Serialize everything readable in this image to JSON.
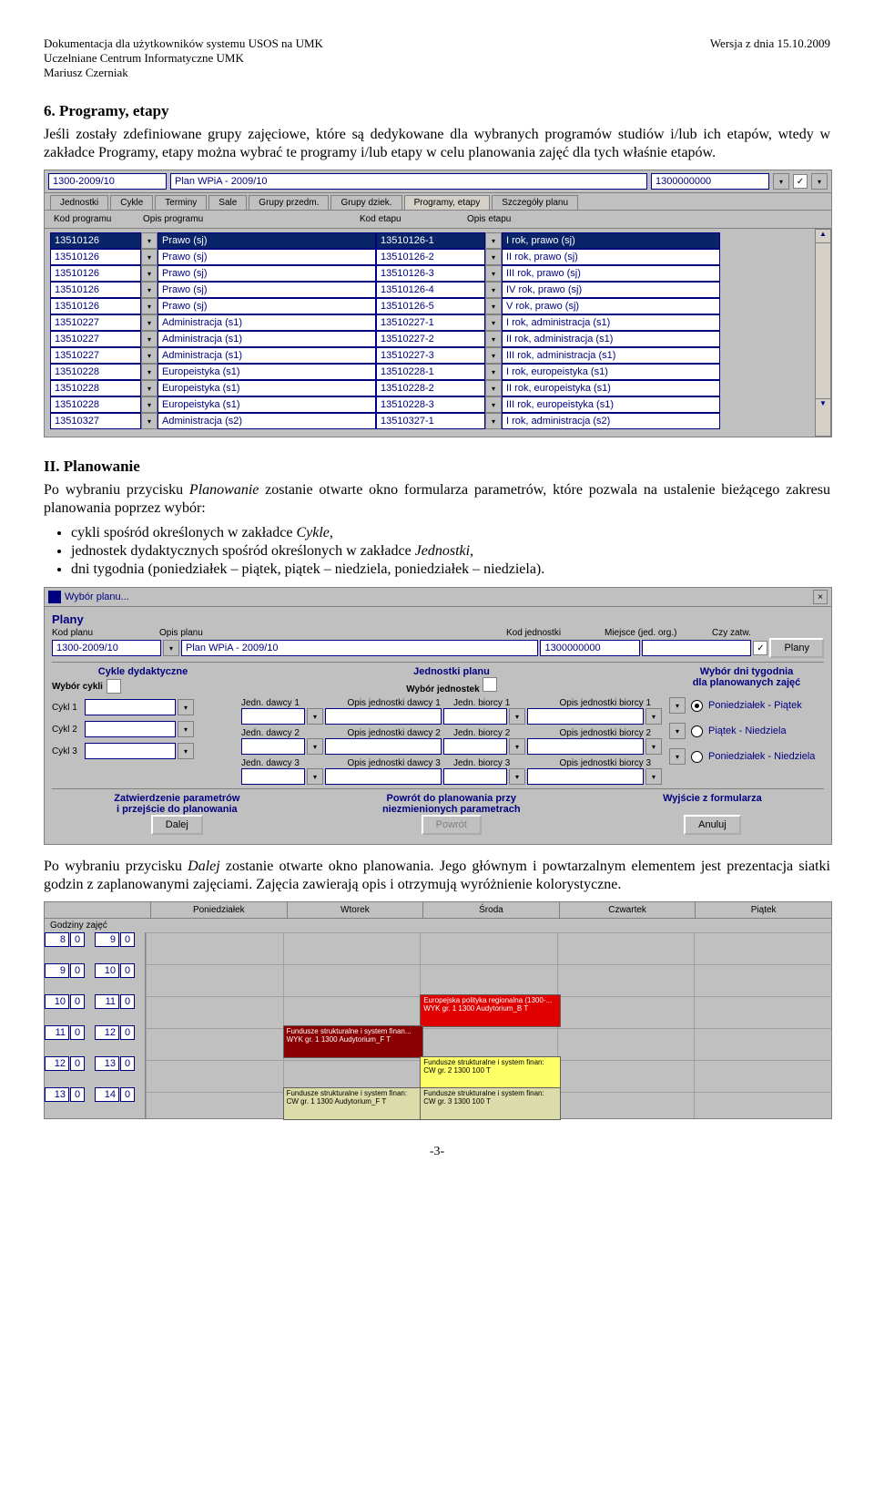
{
  "header": {
    "left1": "Dokumentacja dla użytkowników systemu USOS na UMK",
    "left2": "Uczelniane Centrum Informatyczne UMK",
    "left3": "Mariusz Czerniak",
    "right": "Wersja z dnia 15.10.2009"
  },
  "section6": {
    "title": "6. Programy, etapy",
    "para": "Jeśli zostały zdefiniowane grupy zajęciowe, które są dedykowane dla wybranych programów studiów i/lub ich etapów, wtedy w zakładce Programy, etapy można wybrać te programy i/lub etapy w celu planowania zajęć dla tych właśnie etapów."
  },
  "shot1": {
    "topbar": {
      "kod": "1300-2009/10",
      "plan": "Plan WPiA - 2009/10",
      "jedn": "1300000000"
    },
    "tabs": [
      "Jednostki",
      "Cykle",
      "Terminy",
      "Sale",
      "Grupy przedm.",
      "Grupy dziek.",
      "Programy, etapy",
      "Szczegóły planu"
    ],
    "activeTab": 6,
    "cols": [
      "Kod programu",
      "Opis programu",
      "Kod etapu",
      "Opis etapu"
    ],
    "colw": [
      "90px",
      "230px",
      "110px",
      "230px"
    ],
    "rows": [
      [
        "13510126",
        "Prawo (sj)",
        "13510126-1",
        "I rok, prawo (sj)"
      ],
      [
        "13510126",
        "Prawo (sj)",
        "13510126-2",
        "II rok, prawo (sj)"
      ],
      [
        "13510126",
        "Prawo (sj)",
        "13510126-3",
        "III rok, prawo (sj)"
      ],
      [
        "13510126",
        "Prawo (sj)",
        "13510126-4",
        "IV rok, prawo (sj)"
      ],
      [
        "13510126",
        "Prawo (sj)",
        "13510126-5",
        "V rok, prawo (sj)"
      ],
      [
        "13510227",
        "Administracja (s1)",
        "13510227-1",
        "I rok, administracja (s1)"
      ],
      [
        "13510227",
        "Administracja (s1)",
        "13510227-2",
        "II rok, administracja (s1)"
      ],
      [
        "13510227",
        "Administracja (s1)",
        "13510227-3",
        "III rok, administracja (s1)"
      ],
      [
        "13510228",
        "Europeistyka (s1)",
        "13510228-1",
        "I rok, europeistyka (s1)"
      ],
      [
        "13510228",
        "Europeistyka (s1)",
        "13510228-2",
        "II rok, europeistyka (s1)"
      ],
      [
        "13510228",
        "Europeistyka (s1)",
        "13510228-3",
        "III rok, europeistyka (s1)"
      ],
      [
        "13510327",
        "Administracja (s2)",
        "13510327-1",
        "I rok, administracja (s2)"
      ]
    ],
    "selected": 0
  },
  "sectionII": {
    "title": "II. Planowanie",
    "para": "Po wybraniu przycisku Planowanie zostanie otwarte okno formularza parametrów, które pozwala na ustalenie bieżącego zakresu planowania poprzez wybór:",
    "bullets": [
      "cykli spośród określonych w zakładce Cykle,",
      "jednostek dydaktycznych spośród określonych w zakładce Jednostki,",
      "dni tygodnia (poniedziałek – piątek, piątek – niedziela, poniedziałek – niedziela)."
    ]
  },
  "shot2": {
    "title": "Wybór planu...",
    "plany_label": "Plany",
    "hdrs": [
      "Kod planu",
      "Opis planu",
      "Kod jednostki",
      "Miejsce (jed. org.)",
      "Czy zatw."
    ],
    "row": {
      "kod": "1300-2009/10",
      "opis": "Plan WPiA - 2009/10",
      "jedn": "1300000000",
      "miejsce": "",
      "zatw": "✓",
      "btn": "Plany"
    },
    "cykle_label": "Cykle dydaktyczne",
    "wybor_cykli": "Wybór cykli",
    "cykle": [
      "Cykl 1",
      "Cykl 2",
      "Cykl 3"
    ],
    "jedn_label": "Jednostki planu",
    "wybor_jedn": "Wybór jednostek",
    "jedn_hdrs1": [
      "Jedn. dawcy 1",
      "Opis jednostki dawcy 1",
      "Jedn. biorcy 1",
      "Opis jednostki biorcy 1"
    ],
    "jedn_hdrs2": [
      "Jedn. dawcy 2",
      "Opis jednostki dawcy 2",
      "Jedn. biorcy 2",
      "Opis jednostki biorcy 2"
    ],
    "jedn_hdrs3": [
      "Jedn. dawcy 3",
      "Opis jednostki dawcy 3",
      "Jedn. biorcy 3",
      "Opis jednostki biorcy 3"
    ],
    "dni_label1": "Wybór dni tygodnia",
    "dni_label2": "dla planowanych zajęć",
    "dni": [
      "Poniedziałek - Piątek",
      "Piątek - Niedziela",
      "Poniedziałek - Niedziela"
    ],
    "dni_sel": 0,
    "bottom": {
      "left1": "Zatwierdzenie parametrów",
      "left2": "i przejście do planowania",
      "leftbtn": "Dalej",
      "mid1": "Powrót do planowania przy",
      "mid2": "niezmienionych parametrach",
      "midbtn": "Powrót",
      "right": "Wyjście z formularza",
      "rightbtn": "Anuluj"
    }
  },
  "para_after2": "Po wybraniu przycisku Dalej zostanie otwarte okno planowania. Jego głównym i powtarzalnym elementem jest prezentacja siatki godzin z zaplanowanymi zajęciami. Zajęcia zawierają opis i otrzymują wyróżnienie kolorystyczne.",
  "shot3": {
    "days": [
      "Poniedziałek",
      "Wtorek",
      "Środa",
      "Czwartek",
      "Piątek"
    ],
    "hours_label": "Godziny zajęć",
    "hours": [
      [
        "8",
        "0",
        "9",
        "0"
      ],
      [
        "9",
        "0",
        "10",
        "0"
      ],
      [
        "10",
        "0",
        "11",
        "0"
      ],
      [
        "11",
        "0",
        "12",
        "0"
      ],
      [
        "12",
        "0",
        "13",
        "0"
      ],
      [
        "13",
        "0",
        "14",
        "0"
      ]
    ],
    "events": [
      {
        "col": 2,
        "row": 2,
        "span": 1,
        "cls": "ev-red",
        "text": "Europejska polityka regionalna (1300-... WYK gr. 1 1300 Audytorium_B  T"
      },
      {
        "col": 1,
        "row": 3,
        "span": 1,
        "cls": "ev-darkred",
        "text": "Fundusze strukturalne i system finan... WYK gr. 1 1300 Audytorium_F  T"
      },
      {
        "col": 2,
        "row": 4,
        "span": 1,
        "cls": "ev-yellow",
        "text": "Fundusze strukturalne i system finan: CW gr. 2 1300 100  T"
      },
      {
        "col": 1,
        "row": 5,
        "span": 1,
        "cls": "ev-beige",
        "text": "Fundusze strukturalne i system finan: CW gr. 1 1300 Audytorium_F  T"
      },
      {
        "col": 2,
        "row": 5,
        "span": 1,
        "cls": "ev-beige",
        "text": "Fundusze strukturalne i system finan: CW gr. 3 1300 100  T"
      }
    ]
  },
  "footer": "-3-"
}
